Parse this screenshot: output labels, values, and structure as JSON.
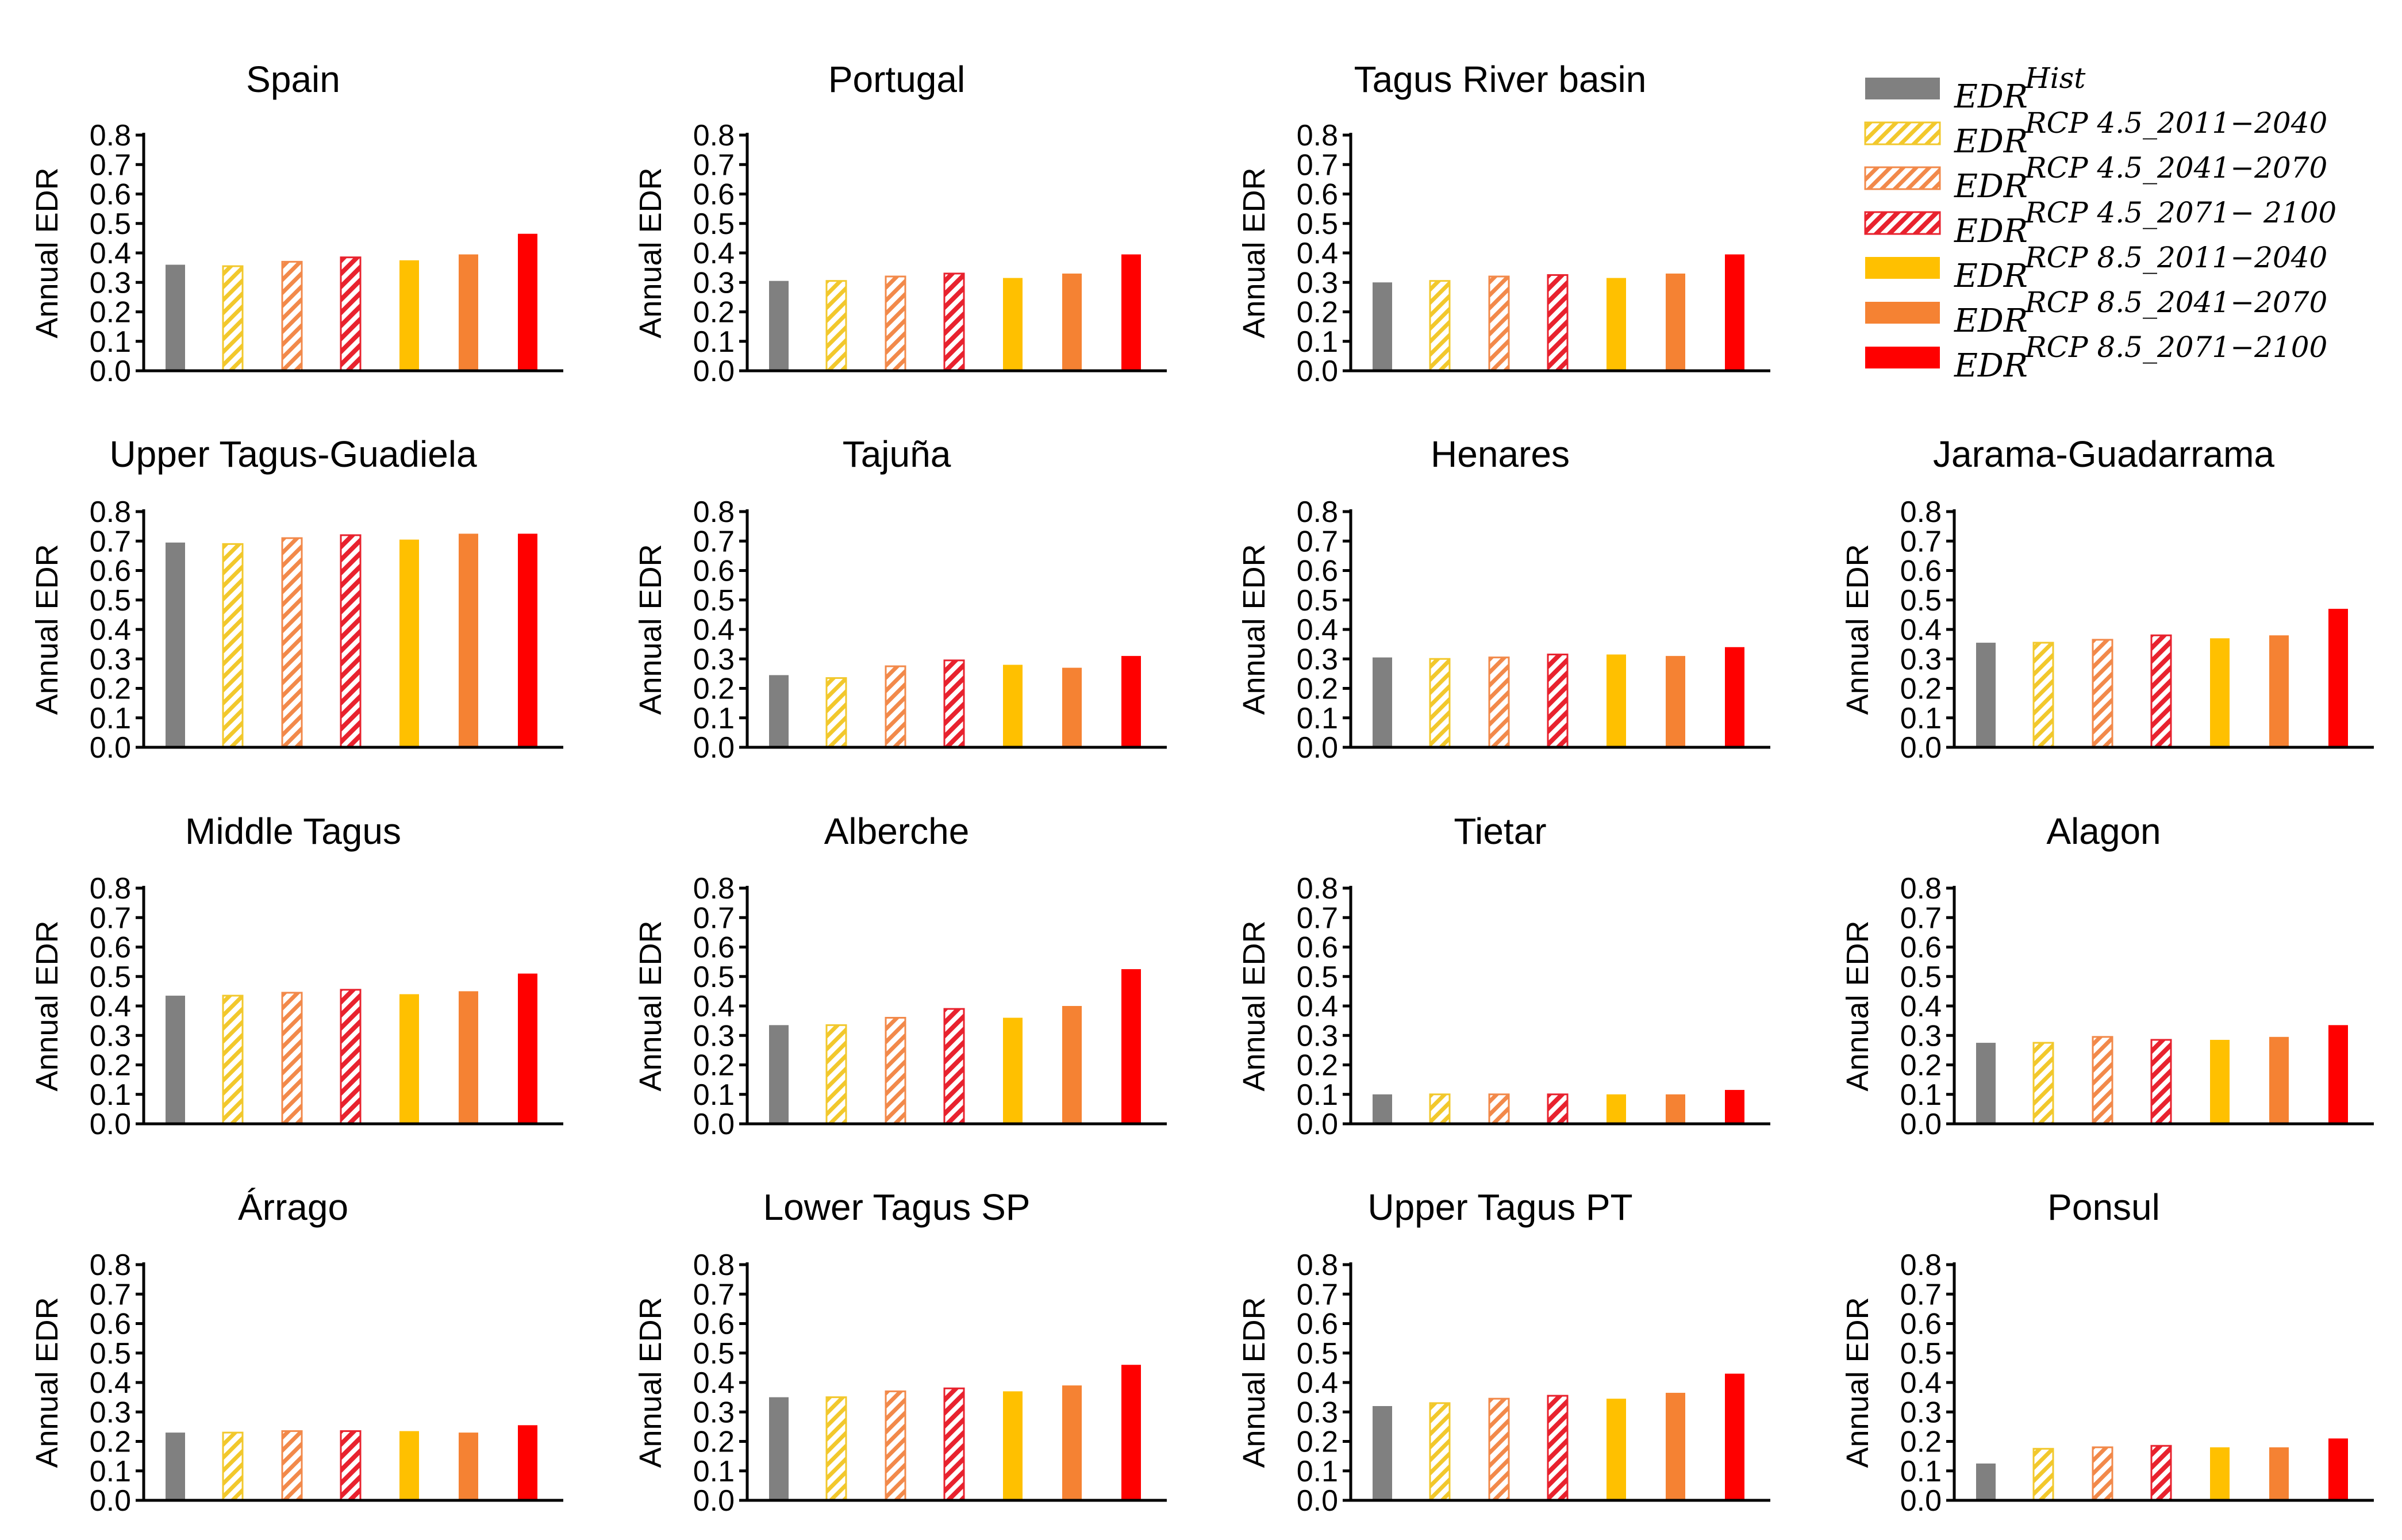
{
  "colors": {
    "hist": "#808080",
    "rcp45_2011_2040": "#f2c82c",
    "rcp45_2041_2070": "#f2894a",
    "rcp45_2071_2100": "#e8222e",
    "rcp85_2011_2040": "#ffc000",
    "rcp85_2041_2070": "#f58233",
    "rcp85_2071_2100": "#ff0000"
  },
  "legend": {
    "items": [
      {
        "key": "hist",
        "base": "EDR",
        "sup": "Hist",
        "hatched": false
      },
      {
        "key": "rcp45_2011_2040",
        "base": "EDR",
        "sup": "RCP 4.5_2011−2040",
        "hatched": true
      },
      {
        "key": "rcp45_2041_2070",
        "base": "EDR",
        "sup": "RCP 4.5_2041−2070",
        "hatched": true
      },
      {
        "key": "rcp45_2071_2100",
        "base": "EDR",
        "sup": "RCP 4.5_2071− 2100",
        "hatched": true
      },
      {
        "key": "rcp85_2011_2040",
        "base": "EDR",
        "sup": "RCP 8.5_2011−2040",
        "hatched": false
      },
      {
        "key": "rcp85_2041_2070",
        "base": "EDR",
        "sup": "RCP 8.5_2041−2070",
        "hatched": false
      },
      {
        "key": "rcp85_2071_2100",
        "base": "EDR",
        "sup": "RCP 8.5_2071−2100",
        "hatched": false
      }
    ]
  },
  "chart_data": {
    "type": "bar",
    "ylabel": "Annual EDR",
    "ylim": [
      0,
      0.8
    ],
    "yticks": [
      "0.0",
      "0.1",
      "0.2",
      "0.3",
      "0.4",
      "0.5",
      "0.6",
      "0.7",
      "0.8"
    ],
    "series_keys": [
      "hist",
      "rcp45_2011_2040",
      "rcp45_2041_2070",
      "rcp45_2071_2100",
      "rcp85_2011_2040",
      "rcp85_2041_2070",
      "rcp85_2071_2100"
    ],
    "panels": [
      {
        "title": "Spain",
        "values": [
          0.36,
          0.355,
          0.37,
          0.385,
          0.375,
          0.395,
          0.465
        ]
      },
      {
        "title": "Portugal",
        "values": [
          0.305,
          0.305,
          0.32,
          0.33,
          0.315,
          0.33,
          0.395
        ]
      },
      {
        "title": "Tagus River basin",
        "values": [
          0.3,
          0.305,
          0.32,
          0.325,
          0.315,
          0.33,
          0.395
        ]
      },
      {
        "title": "Upper Tagus-Guadiela",
        "values": [
          0.695,
          0.69,
          0.71,
          0.72,
          0.705,
          0.725,
          0.725
        ]
      },
      {
        "title": "Tajuña",
        "values": [
          0.245,
          0.235,
          0.275,
          0.295,
          0.28,
          0.27,
          0.31
        ]
      },
      {
        "title": "Henares",
        "values": [
          0.305,
          0.3,
          0.305,
          0.315,
          0.315,
          0.31,
          0.34
        ]
      },
      {
        "title": "Jarama-Guadarrama",
        "values": [
          0.355,
          0.355,
          0.365,
          0.38,
          0.37,
          0.38,
          0.47
        ]
      },
      {
        "title": "Middle Tagus",
        "values": [
          0.435,
          0.435,
          0.445,
          0.455,
          0.44,
          0.45,
          0.51
        ]
      },
      {
        "title": "Alberche",
        "values": [
          0.335,
          0.335,
          0.36,
          0.39,
          0.36,
          0.4,
          0.525
        ]
      },
      {
        "title": "Tietar",
        "values": [
          0.1,
          0.1,
          0.1,
          0.1,
          0.1,
          0.1,
          0.115
        ]
      },
      {
        "title": "Alagon",
        "values": [
          0.275,
          0.275,
          0.295,
          0.285,
          0.285,
          0.295,
          0.335
        ]
      },
      {
        "title": "Árrago",
        "values": [
          0.23,
          0.23,
          0.235,
          0.235,
          0.235,
          0.23,
          0.255
        ]
      },
      {
        "title": "Lower Tagus SP",
        "values": [
          0.35,
          0.35,
          0.37,
          0.38,
          0.37,
          0.39,
          0.46
        ]
      },
      {
        "title": "Upper Tagus PT",
        "values": [
          0.32,
          0.33,
          0.345,
          0.355,
          0.345,
          0.365,
          0.43
        ]
      },
      {
        "title": "Ponsul",
        "values": [
          0.125,
          0.175,
          0.18,
          0.185,
          0.18,
          0.18,
          0.21
        ]
      }
    ]
  }
}
